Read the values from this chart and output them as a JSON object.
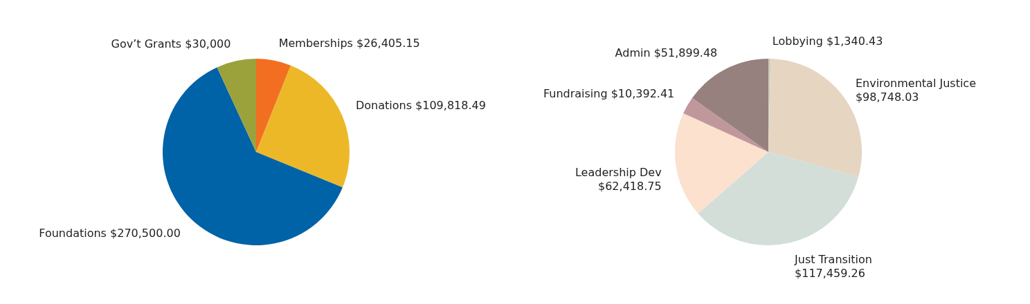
{
  "chart_data": [
    {
      "type": "pie",
      "categories": [
        "Memberships",
        "Donations",
        "Foundations",
        "Gov’t Grants"
      ],
      "values": [
        26405.15,
        109818.49,
        270500.0,
        30000
      ],
      "value_labels": [
        "$26,405.15",
        "$109,818.49",
        "$270,500.00",
        "$30,000"
      ],
      "colors": [
        "#f26f21",
        "#ecb828",
        "#0062a7",
        "#9ba23c"
      ]
    },
    {
      "type": "pie",
      "categories": [
        "Lobbying",
        "Environmental Justice",
        "Just Transition",
        "Leadership Dev",
        "Fundraising",
        "Admin"
      ],
      "values": [
        1340.43,
        98748.03,
        117459.26,
        62418.75,
        10392.41,
        51899.48
      ],
      "value_labels": [
        "$1,340.43",
        "$98,748.03",
        "$117,459.26",
        "$62,418.75",
        "$10,392.41",
        "$51,899.48"
      ],
      "colors": [
        "#c9ccbf",
        "#e5d5c1",
        "#d3ded8",
        "#fce1cf",
        "#c0989c",
        "#96817f"
      ]
    }
  ]
}
